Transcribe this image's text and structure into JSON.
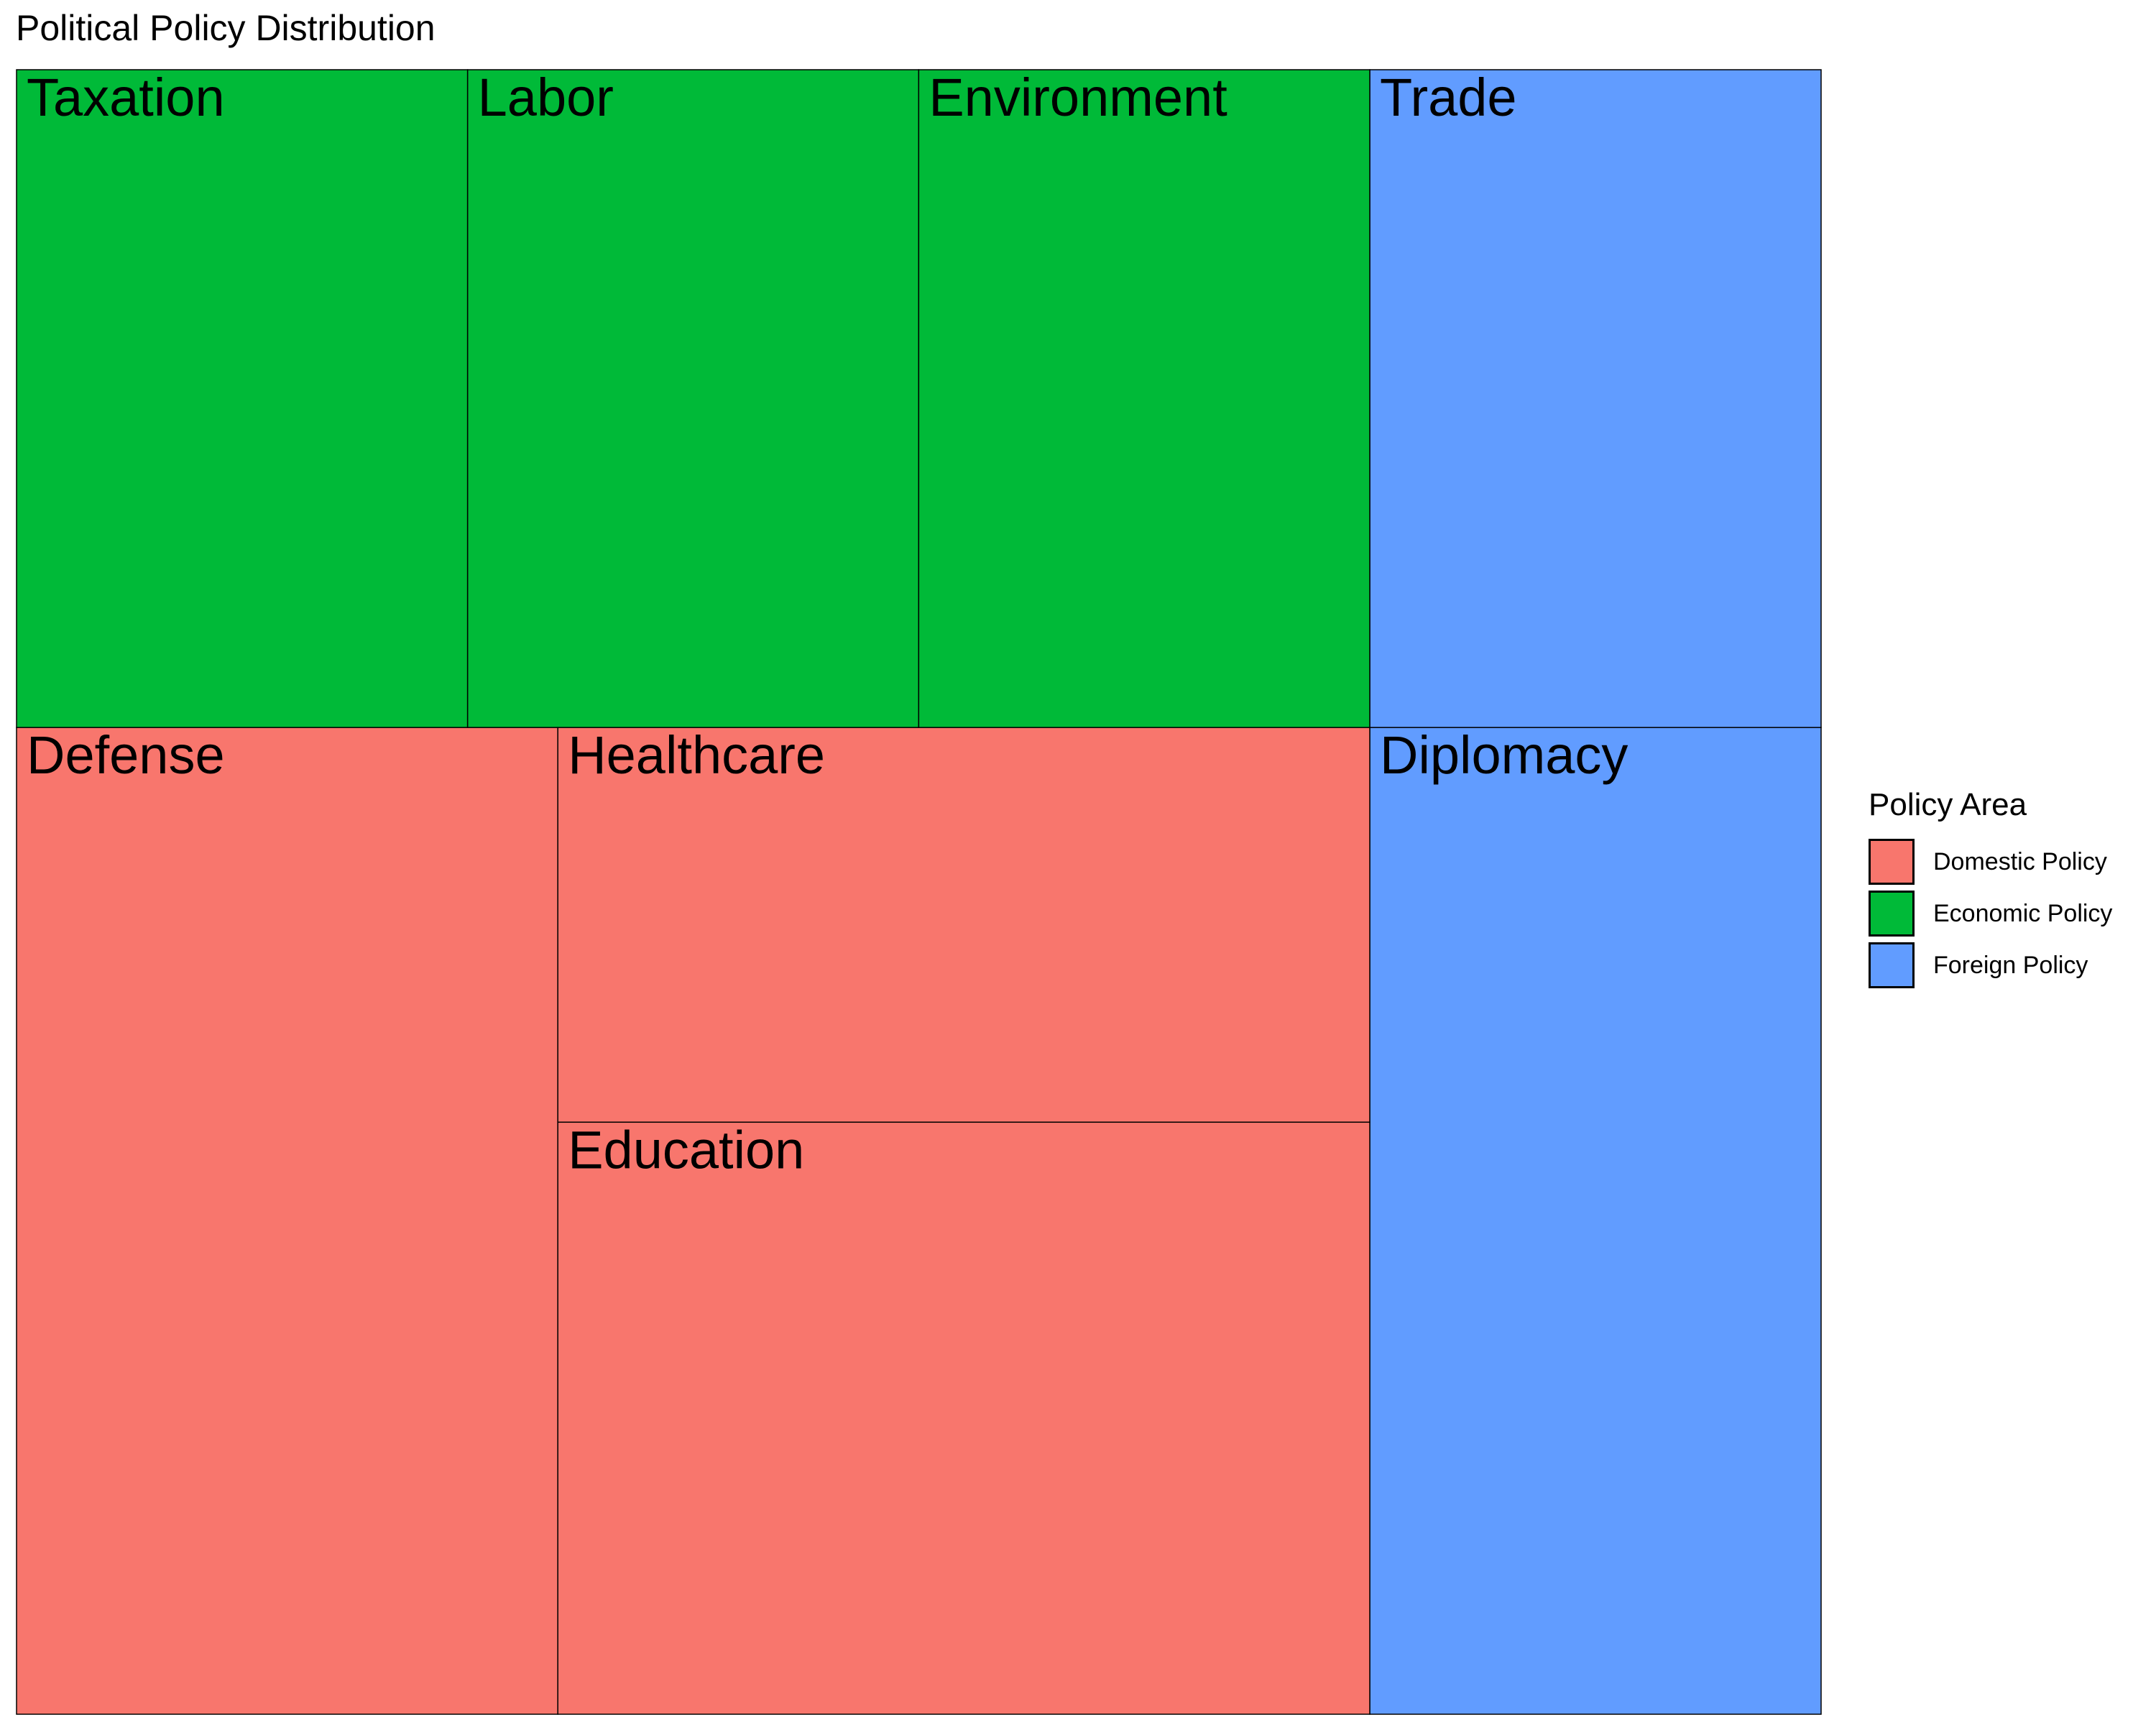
{
  "title": "Political Policy Distribution",
  "chart_data": {
    "type": "treemap",
    "title": "Political Policy Distribution",
    "legend": {
      "title": "Policy Area",
      "placement": "right",
      "entries": [
        "Domestic Policy",
        "Economic Policy",
        "Foreign Policy"
      ]
    },
    "colors": {
      "Domestic Policy": "#F8766D",
      "Economic Policy": "#00BA38",
      "Foreign Policy": "#619CFF"
    },
    "tiles": [
      {
        "label": "Defense",
        "group": "Domestic Policy",
        "value": 30
      },
      {
        "label": "Education",
        "group": "Domestic Policy",
        "value": 27
      },
      {
        "label": "Healthcare",
        "group": "Domestic Policy",
        "value": 18
      },
      {
        "label": "Taxation",
        "group": "Economic Policy",
        "value": 15
      },
      {
        "label": "Labor",
        "group": "Economic Policy",
        "value": 15
      },
      {
        "label": "Environment",
        "group": "Economic Policy",
        "value": 15
      },
      {
        "label": "Trade",
        "group": "Foreign Policy",
        "value": 15
      },
      {
        "label": "Diplomacy",
        "group": "Foreign Policy",
        "value": 22.5
      }
    ]
  }
}
